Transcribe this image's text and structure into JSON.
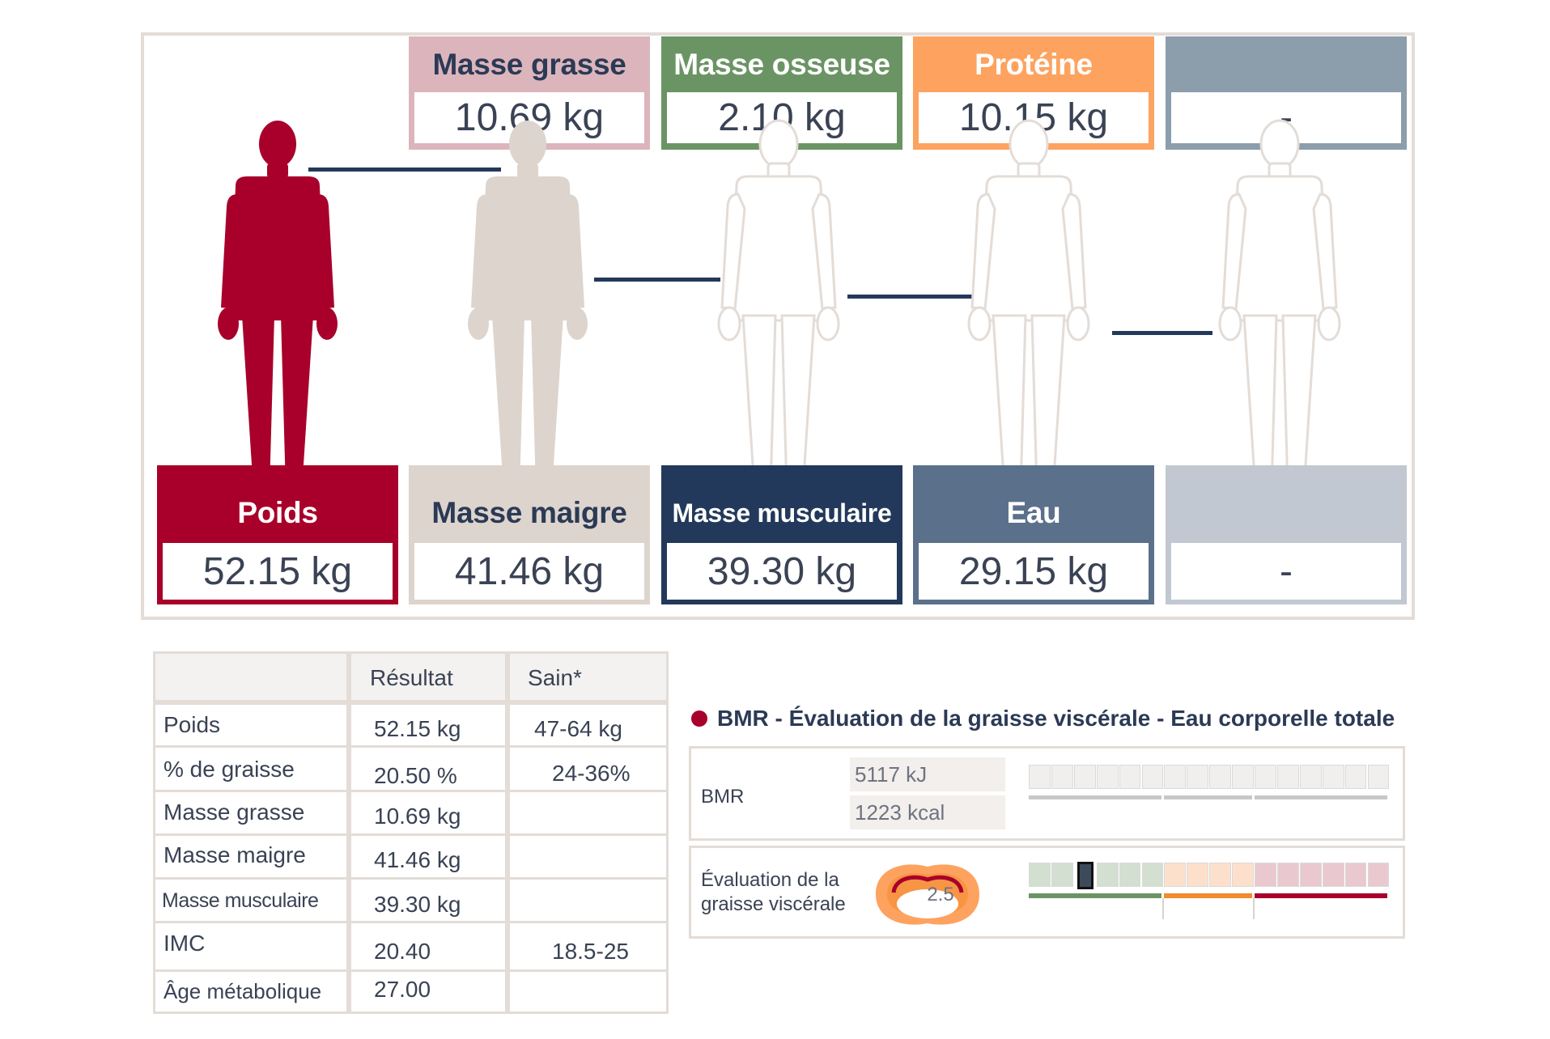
{
  "composition_top": [
    {
      "label": "Masse grasse",
      "value": "10.69 kg",
      "color": "#dcb5bc",
      "text_color": "#2b3a55"
    },
    {
      "label": "Masse osseuse",
      "value": "2.10 kg",
      "color": "#6b9464",
      "text_color": "#ffffff"
    },
    {
      "label": "Protéine",
      "value": "10.15 kg",
      "color": "#fda35f",
      "text_color": "#ffffff"
    },
    {
      "label": "",
      "value": "-",
      "color": "#8c9dac",
      "text_color": "#ffffff"
    }
  ],
  "composition_bottom": [
    {
      "label": "Poids",
      "value": "52.15 kg",
      "color": "#a8002a",
      "text_color": "#ffffff"
    },
    {
      "label": "Masse maigre",
      "value": "41.46 kg",
      "color": "#ddd4ce",
      "text_color": "#2b3a55"
    },
    {
      "label": "Masse musculaire",
      "value": "39.30 kg",
      "color": "#23395b",
      "text_color": "#ffffff"
    },
    {
      "label": "Eau",
      "value": "29.15 kg",
      "color": "#5b708a",
      "text_color": "#ffffff"
    },
    {
      "label": "",
      "value": "-",
      "color": "#c1c8d2",
      "text_color": "#ffffff"
    }
  ],
  "table": {
    "headers": [
      "",
      "Résultat",
      "Sain*"
    ],
    "rows": [
      {
        "label": "Poids",
        "result": "52.15 kg",
        "healthy": "47-64 kg"
      },
      {
        "label": "% de graisse",
        "result": "20.50 %",
        "healthy": "24-36%"
      },
      {
        "label": "Masse grasse",
        "result": "10.69 kg",
        "healthy": ""
      },
      {
        "label": "Masse maigre",
        "result": "41.46 kg",
        "healthy": ""
      },
      {
        "label": "Masse musculaire",
        "result": "39.30 kg",
        "healthy": ""
      },
      {
        "label": "IMC",
        "result": "20.40",
        "healthy": "18.5-25"
      },
      {
        "label": "Âge métabolique",
        "result": "27.00",
        "healthy": ""
      }
    ]
  },
  "bmr_section": {
    "title": "BMR - Évaluation de la graisse viscérale - Eau corporelle totale",
    "bmr": {
      "label": "BMR",
      "kj": "5117 kJ",
      "kcal": "1223 kcal"
    },
    "visceral": {
      "label_line1": "Évaluation de la",
      "label_line2": "graisse viscérale",
      "value": "2.5",
      "level_index": 2,
      "segments": 16
    }
  },
  "colors": {
    "accent_red": "#a8002a",
    "navy": "#23395b",
    "green": "#6b9464",
    "orange": "#f28a2e",
    "border": "#e3dcd7"
  }
}
